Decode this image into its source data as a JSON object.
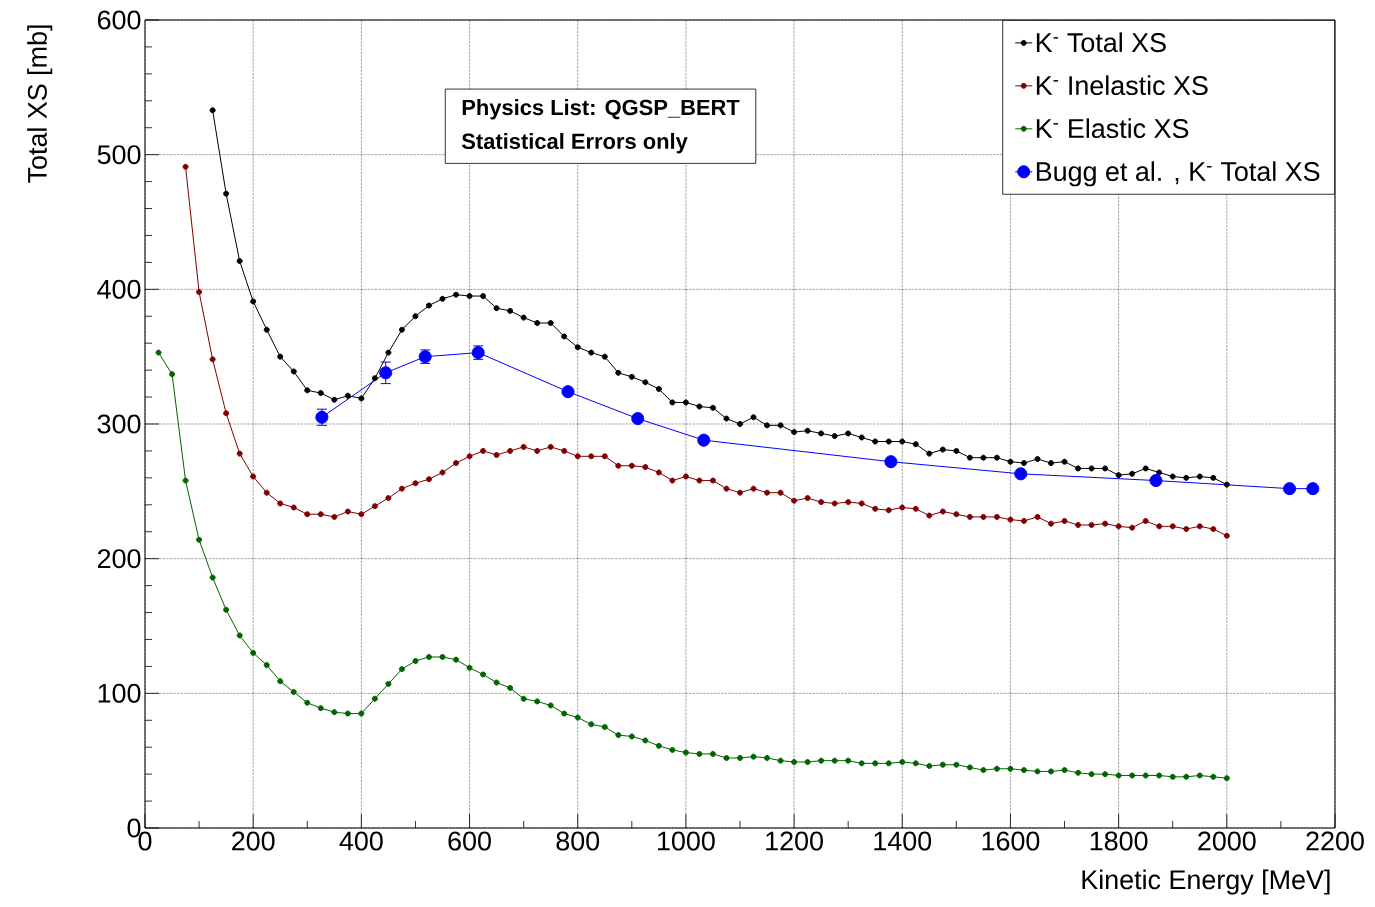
{
  "chart_data": {
    "type": "line",
    "xlabel": "Kinetic Energy [MeV]",
    "ylabel": "Total XS [mb]",
    "xlim": [
      0,
      2200
    ],
    "ylim": [
      0,
      600
    ],
    "xticks": [
      0,
      200,
      400,
      600,
      800,
      1000,
      1200,
      1400,
      1600,
      1800,
      2000,
      2200
    ],
    "yticks": [
      0,
      100,
      200,
      300,
      400,
      500,
      600
    ],
    "grid": true,
    "legend": "top right",
    "line_style": "solid",
    "annotations": [
      "**Physics List: QGSP_BERT**",
      "**Statistical Errors only**"
    ],
    "series": [
      {
        "name": "K$^{-}$ Total XS",
        "color": "#000000",
        "marker": "circle",
        "x": [
          125,
          150,
          175,
          200,
          225,
          250,
          275,
          300,
          325,
          350,
          375,
          400,
          425,
          450,
          475,
          500,
          525,
          550,
          575,
          600,
          625,
          650,
          675,
          700,
          725,
          750,
          775,
          800,
          825,
          850,
          875,
          900,
          925,
          950,
          975,
          1000,
          1025,
          1050,
          1075,
          1100,
          1125,
          1150,
          1175,
          1200,
          1225,
          1250,
          1275,
          1300,
          1325,
          1350,
          1375,
          1400,
          1425,
          1450,
          1475,
          1500,
          1525,
          1550,
          1575,
          1600,
          1625,
          1650,
          1675,
          1700,
          1725,
          1750,
          1775,
          1800,
          1825,
          1850,
          1875,
          1900,
          1925,
          1950,
          1975,
          2000
        ],
        "values": [
          533,
          471,
          421,
          391,
          370,
          350,
          339,
          325,
          323,
          318,
          321,
          319,
          334,
          353,
          370,
          380,
          388,
          393,
          396,
          395,
          395,
          386,
          384,
          379,
          375,
          375,
          365,
          357,
          353,
          350,
          338,
          335,
          331,
          326,
          316,
          316,
          313,
          312,
          304,
          300,
          305,
          299,
          299,
          294,
          295,
          293,
          291,
          293,
          290,
          287,
          287,
          287,
          285,
          278,
          281,
          280,
          275,
          275,
          275,
          272,
          271,
          274,
          271,
          272,
          267,
          267,
          267,
          262,
          263,
          267,
          264,
          261,
          260,
          261,
          260,
          255
        ]
      },
      {
        "name": "K$^{-}$ Inelastic XS",
        "color": "#800000",
        "marker": "circle",
        "x": [
          75,
          100,
          125,
          150,
          175,
          200,
          225,
          250,
          275,
          300,
          325,
          350,
          375,
          400,
          425,
          450,
          475,
          500,
          525,
          550,
          575,
          600,
          625,
          650,
          675,
          700,
          725,
          750,
          775,
          800,
          825,
          850,
          875,
          900,
          925,
          950,
          975,
          1000,
          1025,
          1050,
          1075,
          1100,
          1125,
          1150,
          1175,
          1200,
          1225,
          1250,
          1275,
          1300,
          1325,
          1350,
          1375,
          1400,
          1425,
          1450,
          1475,
          1500,
          1525,
          1550,
          1575,
          1600,
          1625,
          1650,
          1675,
          1700,
          1725,
          1750,
          1775,
          1800,
          1825,
          1850,
          1875,
          1900,
          1925,
          1950,
          1975,
          2000
        ],
        "values": [
          491,
          398,
          348,
          308,
          278,
          261,
          249,
          241,
          238,
          233,
          233,
          231,
          235,
          233,
          239,
          245,
          252,
          256,
          259,
          264,
          271,
          276,
          280,
          277,
          280,
          283,
          280,
          283,
          280,
          276,
          276,
          276,
          269,
          269,
          268,
          264,
          258,
          261,
          258,
          258,
          252,
          249,
          252,
          249,
          249,
          243,
          245,
          242,
          241,
          242,
          241,
          237,
          236,
          238,
          237,
          232,
          235,
          233,
          231,
          231,
          231,
          229,
          228,
          231,
          226,
          228,
          225,
          225,
          226,
          224,
          223,
          228,
          224,
          224,
          222,
          224,
          222,
          217
        ]
      },
      {
        "name": "K$^{-}$ Elastic XS",
        "color": "#006400",
        "marker": "circle",
        "x": [
          25,
          50,
          75,
          100,
          125,
          150,
          175,
          200,
          225,
          250,
          275,
          300,
          325,
          350,
          375,
          400,
          425,
          450,
          475,
          500,
          525,
          550,
          575,
          600,
          625,
          650,
          675,
          700,
          725,
          750,
          775,
          800,
          825,
          850,
          875,
          900,
          925,
          950,
          975,
          1000,
          1025,
          1050,
          1075,
          1100,
          1125,
          1150,
          1175,
          1200,
          1225,
          1250,
          1275,
          1300,
          1325,
          1350,
          1375,
          1400,
          1425,
          1450,
          1475,
          1500,
          1525,
          1550,
          1575,
          1600,
          1625,
          1650,
          1675,
          1700,
          1725,
          1750,
          1775,
          1800,
          1825,
          1850,
          1875,
          1900,
          1925,
          1950,
          1975,
          2000
        ],
        "values": [
          353,
          337,
          258,
          214,
          186,
          162,
          143,
          130,
          121,
          109,
          101,
          93,
          89,
          86,
          85,
          85,
          96,
          107,
          118,
          124,
          127,
          127,
          125,
          119,
          114,
          108,
          104,
          96,
          94,
          91,
          85,
          82,
          77,
          75,
          69,
          68,
          65,
          61,
          58,
          56,
          55,
          55,
          52,
          52,
          53,
          52,
          50,
          49,
          49,
          50,
          50,
          50,
          48,
          48,
          48,
          49,
          48,
          46,
          47,
          47,
          45,
          43,
          44,
          44,
          43,
          42,
          42,
          43,
          41,
          40,
          40,
          39,
          39,
          39,
          39,
          38,
          38,
          39,
          38,
          37
        ]
      },
      {
        "name": "Bugg et al. , K$^{-}$ Total XS",
        "color": "#0000ff",
        "marker": "circle",
        "x": [
          327,
          445,
          518,
          616,
          782,
          911,
          1033,
          1379,
          1619,
          1869,
          2116,
          2159
        ],
        "values": [
          305,
          338,
          350,
          353,
          324,
          304,
          288,
          272,
          263,
          258,
          252,
          252
        ],
        "errors": [
          6,
          8,
          5,
          5,
          null,
          null,
          null,
          null,
          null,
          null,
          null,
          null
        ]
      }
    ]
  }
}
